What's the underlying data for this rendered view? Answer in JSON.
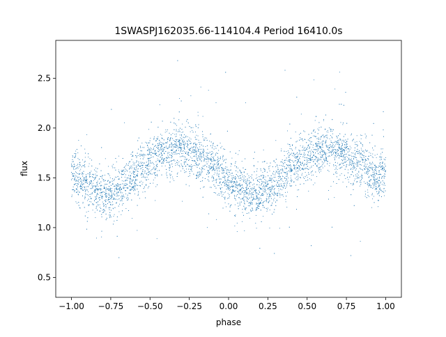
{
  "chart_data": {
    "type": "scatter",
    "title": "1SWASPJ162035.66-114104.4 Period 16410.0s",
    "xlabel": "phase",
    "ylabel": "flux",
    "xlim": [
      -1.1,
      1.1
    ],
    "ylim": [
      0.3,
      2.88
    ],
    "xticks": [
      -1.0,
      -0.75,
      -0.5,
      -0.25,
      0.0,
      0.25,
      0.5,
      0.75,
      1.0
    ],
    "xtick_labels": [
      "−1.00",
      "−0.75",
      "−0.50",
      "−0.25",
      "0.00",
      "0.25",
      "0.50",
      "0.75",
      "1.00"
    ],
    "yticks": [
      0.5,
      1.0,
      1.5,
      2.0,
      2.5
    ],
    "ytick_labels": [
      "0.5",
      "1.0",
      "1.5",
      "2.0",
      "2.5"
    ],
    "grid": false,
    "legend": "none",
    "point_color": "#1f77b4",
    "series": [
      {
        "x": [
          -1.0,
          -0.95,
          -0.9,
          -0.85,
          -0.8,
          -0.75,
          -0.7,
          -0.65,
          -0.6,
          -0.55,
          -0.5,
          -0.45,
          -0.4,
          -0.35,
          -0.3,
          -0.25,
          -0.2,
          -0.15,
          -0.1,
          -0.05,
          0.0,
          0.05,
          0.1,
          0.15,
          0.2,
          0.25,
          0.3,
          0.35,
          0.4,
          0.45,
          0.5,
          0.55,
          0.6,
          0.65,
          0.7,
          0.75,
          0.8,
          0.85,
          0.9,
          0.95,
          1.0
        ],
        "y": [
          1.55,
          1.48,
          1.41,
          1.36,
          1.33,
          1.34,
          1.38,
          1.45,
          1.53,
          1.61,
          1.67,
          1.72,
          1.76,
          1.78,
          1.78,
          1.76,
          1.73,
          1.68,
          1.62,
          1.55,
          1.48,
          1.41,
          1.36,
          1.33,
          1.34,
          1.38,
          1.45,
          1.53,
          1.61,
          1.67,
          1.72,
          1.76,
          1.78,
          1.78,
          1.76,
          1.73,
          1.68,
          1.62,
          1.55,
          1.48,
          1.55
        ]
      }
    ]
  }
}
